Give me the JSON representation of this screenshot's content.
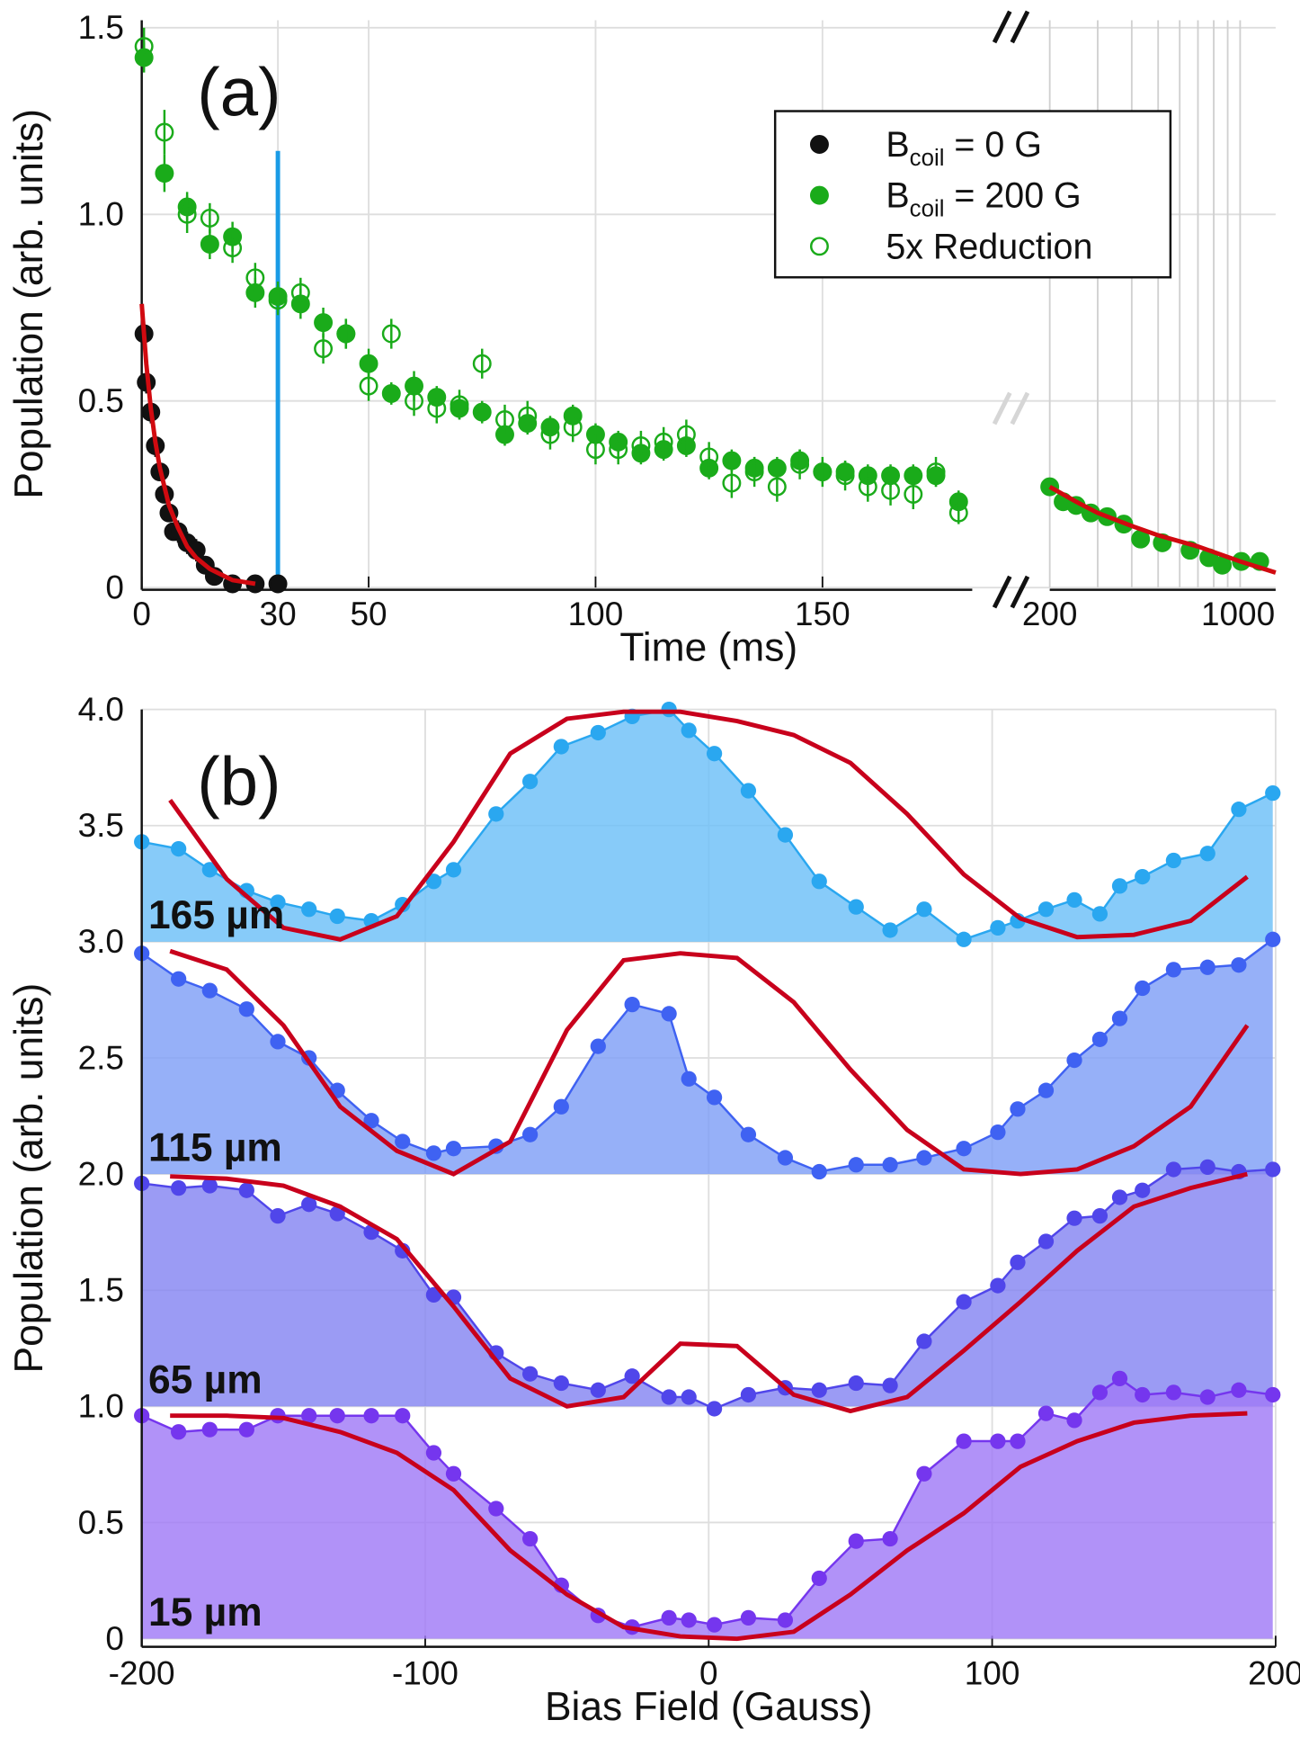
{
  "chart_data": [
    {
      "type": "scatter",
      "panel_label": "(a)",
      "xlabel": "Time (ms)",
      "ylabel": "Population (arb. units)",
      "xlim": [
        0,
        183
      ],
      "xticks": [
        0,
        30,
        50,
        100,
        150
      ],
      "x2lim": [
        200,
        1350
      ],
      "x2ticks": [
        200,
        1000
      ],
      "x2scale": "log",
      "x2grid_minor": [
        300,
        400,
        500,
        600,
        700,
        800,
        900
      ],
      "ylim": [
        0,
        1.52
      ],
      "yticks": [
        0,
        0.5,
        {
          "value": 1,
          "label": "1.0"
        },
        1.5
      ],
      "grid": true,
      "legend": "upper right",
      "series": [
        {
          "name": "Bcoil = 0 G",
          "subscript": "coil",
          "color": "#111111",
          "marker": "filled",
          "x": [
            0.5,
            1,
            2,
            3,
            4,
            5,
            6,
            7,
            8,
            10,
            12,
            14,
            16,
            20,
            25,
            30
          ],
          "values": [
            0.68,
            0.55,
            0.47,
            0.38,
            0.31,
            0.25,
            0.2,
            0.15,
            0.15,
            0.12,
            0.1,
            0.06,
            0.03,
            0.01,
            0.01,
            0.01
          ],
          "errors": [
            0.03,
            0.03,
            0.03,
            0.03,
            0.02,
            0.02,
            0.02,
            0.02,
            0.03,
            0.03,
            0.03,
            0.02,
            0.02,
            0.01,
            0.01,
            0.01
          ]
        },
        {
          "name": "Bcoil = 200 G",
          "subscript": "coil",
          "color": "#1aab1a",
          "marker": "filled",
          "x": [
            0.5,
            5,
            10,
            15,
            20,
            25,
            30,
            35,
            40,
            45,
            50,
            55,
            60,
            65,
            70,
            75,
            80,
            85,
            90,
            95,
            100,
            105,
            110,
            115,
            120,
            125,
            130,
            135,
            140,
            145,
            150,
            155,
            160,
            165,
            170,
            175,
            180,
            200,
            224,
            250,
            283,
            325,
            374,
            431,
            518,
            655,
            768,
            860,
            1010,
            1180
          ],
          "values": [
            1.42,
            1.11,
            1.02,
            0.92,
            0.94,
            0.79,
            0.78,
            0.76,
            0.71,
            0.68,
            0.6,
            0.52,
            0.54,
            0.51,
            0.48,
            0.47,
            0.41,
            0.44,
            0.43,
            0.46,
            0.41,
            0.39,
            0.36,
            0.37,
            0.38,
            0.32,
            0.34,
            0.32,
            0.32,
            0.34,
            0.31,
            0.31,
            0.3,
            0.3,
            0.3,
            0.3,
            0.23,
            0.27,
            0.23,
            0.22,
            0.2,
            0.19,
            0.17,
            0.13,
            0.12,
            0.1,
            0.08,
            0.06,
            0.07,
            0.07
          ],
          "errors": [
            0.04,
            0.05,
            0.04,
            0.04,
            0.04,
            0.04,
            0.04,
            0.04,
            0.04,
            0.04,
            0.04,
            0.03,
            0.04,
            0.03,
            0.03,
            0.03,
            0.03,
            0.03,
            0.03,
            0.03,
            0.03,
            0.03,
            0.03,
            0.03,
            0.03,
            0.03,
            0.03,
            0.03,
            0.03,
            0.03,
            0.03,
            0.03,
            0.03,
            0.03,
            0.03,
            0.03,
            0.03,
            0.02,
            0.02,
            0.02,
            0.02,
            0.02,
            0.02,
            0.02,
            0.02,
            0.02,
            0.02,
            0.02,
            0.02,
            0.02
          ]
        },
        {
          "name": "5x Reduction",
          "color": "#1aab1a",
          "marker": "open",
          "x": [
            0.5,
            5,
            10,
            15,
            20,
            25,
            30,
            35,
            40,
            45,
            50,
            55,
            60,
            65,
            70,
            75,
            80,
            85,
            90,
            95,
            100,
            105,
            110,
            115,
            120,
            125,
            130,
            135,
            140,
            145,
            150,
            155,
            160,
            165,
            170,
            175,
            180
          ],
          "values": [
            1.45,
            1.22,
            1.0,
            0.99,
            0.91,
            0.83,
            0.77,
            0.79,
            0.64,
            0.68,
            0.54,
            0.68,
            0.5,
            0.48,
            0.49,
            0.6,
            0.45,
            0.46,
            0.41,
            0.43,
            0.37,
            0.37,
            0.38,
            0.39,
            0.41,
            0.35,
            0.28,
            0.31,
            0.27,
            0.33,
            0.31,
            0.3,
            0.27,
            0.26,
            0.25,
            0.31,
            0.2
          ],
          "errors": [
            0.05,
            0.06,
            0.05,
            0.04,
            0.04,
            0.04,
            0.04,
            0.04,
            0.04,
            0.04,
            0.04,
            0.04,
            0.04,
            0.04,
            0.04,
            0.04,
            0.04,
            0.04,
            0.04,
            0.04,
            0.04,
            0.04,
            0.04,
            0.04,
            0.04,
            0.04,
            0.04,
            0.04,
            0.04,
            0.04,
            0.04,
            0.04,
            0.04,
            0.04,
            0.04,
            0.04,
            0.03
          ]
        }
      ],
      "fits": [
        {
          "color": "#d10a10",
          "x": [
            0,
            1,
            2,
            3,
            4,
            6,
            8,
            10,
            12,
            15,
            20,
            25
          ],
          "values": [
            0.76,
            0.6,
            0.48,
            0.39,
            0.32,
            0.22,
            0.16,
            0.11,
            0.08,
            0.05,
            0.02,
            0.01
          ]
        },
        {
          "color": "#d10a10",
          "x": [
            200,
            250,
            300,
            400,
            500,
            700,
            1000,
            1350
          ],
          "values": [
            0.27,
            0.23,
            0.2,
            0.165,
            0.14,
            0.11,
            0.07,
            0.04
          ]
        }
      ],
      "marker_line": {
        "x": 30,
        "top": 1.17,
        "color": "#1a9be6"
      }
    },
    {
      "type": "area",
      "panel_label": "(b)",
      "xlabel": "Bias Field (Gauss)",
      "ylabel": "Population (arb. units)",
      "xlim": [
        -200,
        200
      ],
      "xticks": [
        -200,
        -100,
        0,
        100,
        200
      ],
      "ylim": [
        -0.035,
        4
      ],
      "yticks": [
        0,
        0.5,
        {
          "value": 1,
          "label": "1.0"
        },
        1.5,
        {
          "value": 2,
          "label": "2.0"
        },
        2.5,
        {
          "value": 3,
          "label": "3.0"
        },
        3.5,
        {
          "value": 4,
          "label": "4.0"
        }
      ],
      "grid": true,
      "fit_color": "#c8001c",
      "x": [
        -200,
        -187,
        -176,
        -163,
        -152,
        -141,
        -131,
        -119,
        -108,
        -97,
        -90,
        -75,
        -63,
        -52,
        -39,
        -27,
        -14,
        -7,
        2,
        14,
        27,
        39,
        52,
        64,
        76,
        90,
        102,
        109,
        119,
        129,
        138,
        145,
        153,
        164,
        176,
        187,
        199
      ],
      "fit_x": [
        -190,
        -170,
        -150,
        -130,
        -110,
        -90,
        -70,
        -50,
        -30,
        -10,
        10,
        30,
        50,
        70,
        90,
        110,
        130,
        150,
        170,
        190
      ],
      "series": [
        {
          "name": "165 µm",
          "color": "#2aa7f0",
          "fill": "#6cc0f8",
          "baseline": 3,
          "values": [
            3.43,
            3.4,
            3.31,
            3.22,
            3.17,
            3.14,
            3.11,
            3.09,
            3.16,
            3.26,
            3.31,
            3.55,
            3.69,
            3.84,
            3.9,
            3.97,
            4.0,
            3.91,
            3.81,
            3.65,
            3.46,
            3.26,
            3.15,
            3.05,
            3.14,
            3.01,
            3.06,
            3.09,
            3.14,
            3.18,
            3.12,
            3.24,
            3.28,
            3.35,
            3.38,
            3.57,
            3.64
          ],
          "fit": [
            3.61,
            3.27,
            3.06,
            3.01,
            3.11,
            3.43,
            3.81,
            3.96,
            3.99,
            3.99,
            3.95,
            3.89,
            3.77,
            3.55,
            3.29,
            3.1,
            3.02,
            3.03,
            3.09,
            3.28
          ]
        },
        {
          "name": "115 µm",
          "color": "#3f62f2",
          "fill": "#7f9ff7",
          "baseline": 2,
          "values": [
            2.95,
            2.84,
            2.79,
            2.71,
            2.57,
            2.5,
            2.36,
            2.23,
            2.14,
            2.09,
            2.11,
            2.12,
            2.17,
            2.29,
            2.55,
            2.73,
            2.69,
            2.41,
            2.33,
            2.17,
            2.07,
            2.01,
            2.04,
            2.04,
            2.07,
            2.11,
            2.18,
            2.28,
            2.36,
            2.49,
            2.58,
            2.67,
            2.8,
            2.88,
            2.89,
            2.9,
            3.01
          ],
          "fit": [
            2.96,
            2.88,
            2.64,
            2.29,
            2.1,
            2.0,
            2.14,
            2.62,
            2.92,
            2.95,
            2.93,
            2.74,
            2.45,
            2.19,
            2.02,
            2.0,
            2.02,
            2.12,
            2.29,
            2.64
          ]
        },
        {
          "name": "65 µm",
          "color": "#5046ea",
          "fill": "#8585f2",
          "baseline": 1,
          "values": [
            1.96,
            1.94,
            1.95,
            1.93,
            1.82,
            1.87,
            1.83,
            1.75,
            1.67,
            1.48,
            1.47,
            1.23,
            1.14,
            1.1,
            1.07,
            1.13,
            1.04,
            1.04,
            0.99,
            1.05,
            1.08,
            1.07,
            1.1,
            1.09,
            1.28,
            1.45,
            1.52,
            1.62,
            1.71,
            1.81,
            1.82,
            1.9,
            1.93,
            2.02,
            2.03,
            2.01,
            2.02
          ],
          "fit": [
            1.99,
            1.98,
            1.95,
            1.86,
            1.72,
            1.43,
            1.12,
            1.0,
            1.04,
            1.27,
            1.26,
            1.05,
            0.98,
            1.04,
            1.24,
            1.45,
            1.67,
            1.86,
            1.94,
            2.0
          ]
        },
        {
          "name": "15 µm",
          "color": "#7536ee",
          "fill": "#a07af7",
          "baseline": 0,
          "values": [
            0.96,
            0.89,
            0.9,
            0.9,
            0.96,
            0.96,
            0.96,
            0.96,
            0.96,
            0.8,
            0.71,
            0.56,
            0.43,
            0.23,
            0.1,
            0.05,
            0.09,
            0.08,
            0.06,
            0.09,
            0.08,
            0.26,
            0.42,
            0.43,
            0.71,
            0.85,
            0.85,
            0.85,
            0.97,
            0.94,
            1.06,
            1.12,
            1.05,
            1.06,
            1.04,
            1.07,
            1.05
          ],
          "fit": [
            0.96,
            0.96,
            0.95,
            0.89,
            0.8,
            0.64,
            0.38,
            0.19,
            0.05,
            0.01,
            0.0,
            0.03,
            0.19,
            0.38,
            0.54,
            0.74,
            0.85,
            0.93,
            0.96,
            0.97
          ]
        }
      ]
    }
  ]
}
